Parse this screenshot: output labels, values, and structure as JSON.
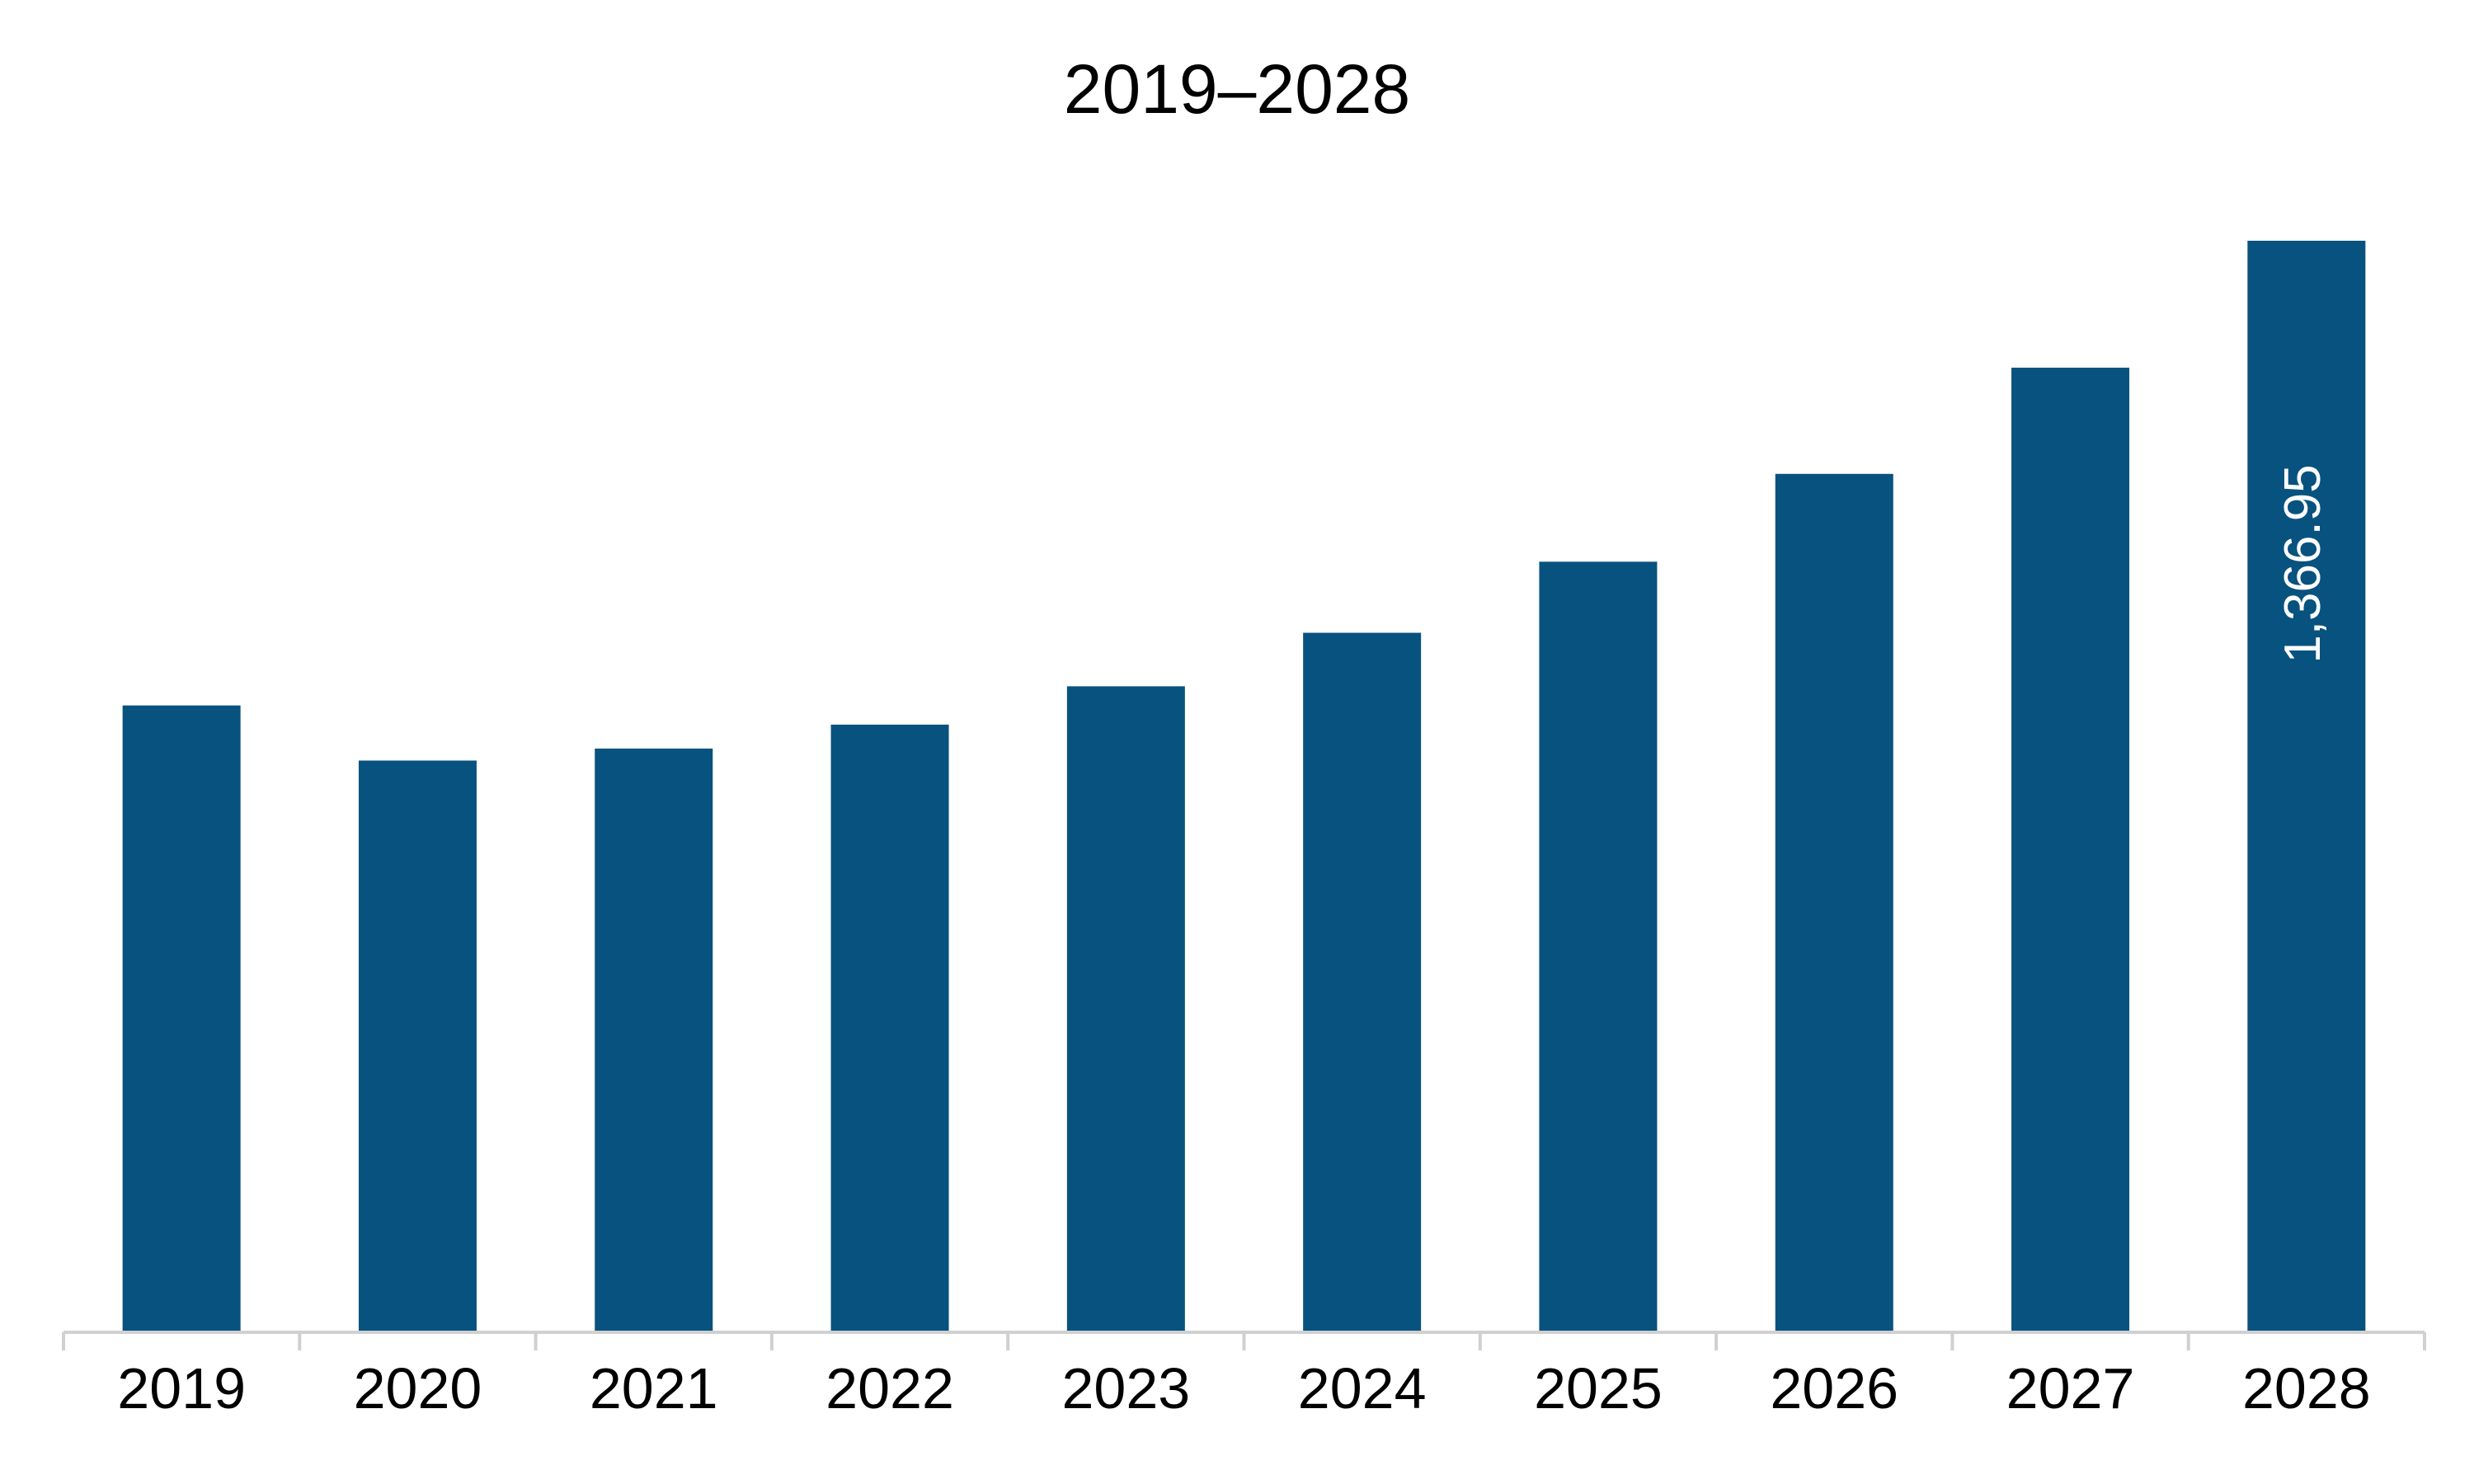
{
  "colors": {
    "bar": "#08527F",
    "axis": "#D0D0D0",
    "label": "#000000",
    "data_label": "#FFFFFF",
    "background": "#FFFFFF"
  },
  "chart_data": {
    "type": "bar",
    "title": "2019–2028",
    "categories": [
      "2019",
      "2020",
      "2021",
      "2022",
      "2023",
      "2024",
      "2025",
      "2026",
      "2027",
      "2028"
    ],
    "values": [
      785,
      716,
      731,
      761,
      809,
      876,
      965,
      1075,
      1208,
      1366.95
    ],
    "data_labels": [
      "",
      "",
      "",
      "",
      "",
      "",
      "",
      "",
      "",
      "1,366.95"
    ],
    "xlabel": "",
    "ylabel": "",
    "ylim": [
      0,
      1366.95
    ],
    "grid": false,
    "legend": "none"
  }
}
